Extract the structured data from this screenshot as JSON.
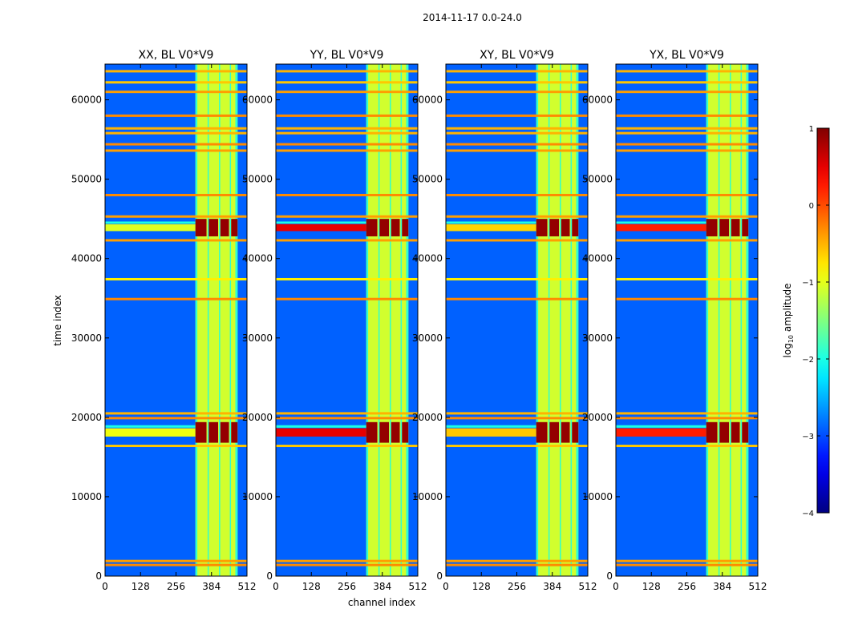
{
  "chart_data": {
    "type": "heatmap",
    "suptitle": "2014-11-17 0.0-24.0",
    "xlabel": "channel index",
    "ylabel": "time index",
    "xlim": [
      0,
      512
    ],
    "ylim": [
      0,
      64500
    ],
    "xticks": [
      0,
      128,
      256,
      384,
      512
    ],
    "xtick_labels": [
      "0",
      "128",
      "256",
      "384",
      "512"
    ],
    "yticks": [
      0,
      10000,
      20000,
      30000,
      40000,
      50000,
      60000
    ],
    "ytick_labels": [
      "0",
      "10000",
      "20000",
      "30000",
      "40000",
      "50000",
      "60000"
    ],
    "panels": [
      {
        "title": "XX, BL V0*V9",
        "burst_mid_strength": 0.15
      },
      {
        "title": "YY, BL V0*V9",
        "burst_mid_strength": 1.0
      },
      {
        "title": "XY, BL V0*V9",
        "burst_mid_strength": 0.35
      },
      {
        "title": "YX, BL V0*V9",
        "burst_mid_strength": 0.85
      }
    ],
    "background_level": -2.9,
    "band": {
      "start": 326,
      "end": 478,
      "stripes": [
        [
          326,
          333
        ],
        [
          370,
          373
        ],
        [
          411,
          414
        ],
        [
          450,
          454
        ],
        [
          470,
          478
        ]
      ],
      "level": -1.1
    },
    "bursts": [
      {
        "t0": 16800,
        "t1": 19400,
        "left_level": -1.2,
        "mid_level": 0.9
      },
      {
        "t0": 42800,
        "t1": 45000,
        "left_level": -1.3,
        "mid_level": 0.9
      }
    ],
    "flag_lines": [
      {
        "t": 1400,
        "level": -0.3
      },
      {
        "t": 1900,
        "level": -0.4
      },
      {
        "t": 16400,
        "level": -0.6
      },
      {
        "t": 19900,
        "level": -0.3
      },
      {
        "t": 20500,
        "level": -0.5
      },
      {
        "t": 34900,
        "level": -0.3
      },
      {
        "t": 37400,
        "level": -0.8
      },
      {
        "t": 42300,
        "level": -0.4
      },
      {
        "t": 45300,
        "level": -0.4
      },
      {
        "t": 48000,
        "level": -0.3
      },
      {
        "t": 53600,
        "level": -0.4
      },
      {
        "t": 54400,
        "level": -0.3
      },
      {
        "t": 55800,
        "level": -0.5
      },
      {
        "t": 56400,
        "level": -0.5
      },
      {
        "t": 58000,
        "level": -0.3
      },
      {
        "t": 61000,
        "level": -0.4
      },
      {
        "t": 62200,
        "level": -0.6
      },
      {
        "t": 63600,
        "level": -0.5
      }
    ],
    "colorbar": {
      "label_prefix": "log",
      "label_subscript": "10",
      "label_suffix": " amplitude",
      "range": [
        -4,
        1
      ],
      "ticks": [
        1,
        0,
        -1,
        -2,
        -3,
        -4
      ],
      "tick_labels": [
        "1",
        "0",
        "−1",
        "−2",
        "−3",
        "−4"
      ]
    }
  }
}
